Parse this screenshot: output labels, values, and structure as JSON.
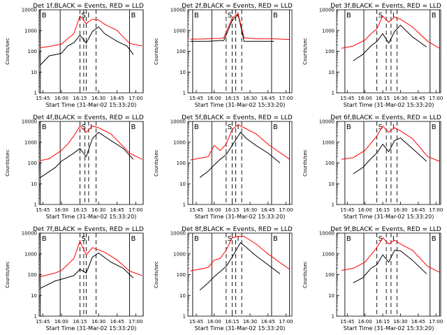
{
  "x_labels": [
    "15:45",
    "16:00",
    "16:15",
    "16:30",
    "16:45",
    "17:00"
  ],
  "y_labels": [
    "1",
    "10",
    "100",
    "1000",
    "10000"
  ],
  "ylabel": "Counts/sec",
  "xlabel": "Start Time (31-Mar-02 15:33:20)",
  "colors": {
    "events": "#000000",
    "lld": "#ff0000"
  },
  "chart_data": [
    {
      "title": "Det 1f,BLACK = Events, RED = LLD",
      "type": "line",
      "yscale": "log",
      "ylim": [
        1,
        10000
      ],
      "x_axis": "time",
      "xlim": [
        "15:42",
        "17:06"
      ],
      "series": [
        {
          "name": "Events",
          "color": "#000000",
          "x": [
            "15:43",
            "15:50",
            "16:00",
            "16:05",
            "16:10",
            "16:15",
            "16:20",
            "16:25",
            "16:30",
            "16:35",
            "16:45",
            "16:53",
            "16:58"
          ],
          "y": [
            22,
            60,
            80,
            180,
            260,
            600,
            250,
            900,
            1500,
            700,
            300,
            180,
            70
          ]
        },
        {
          "name": "LLD",
          "color": "#ff0000",
          "x": [
            "15:43",
            "15:50",
            "16:00",
            "16:05",
            "16:10",
            "16:15",
            "16:20",
            "16:25",
            "16:30",
            "16:35",
            "16:45",
            "16:55",
            "17:05"
          ],
          "y": [
            150,
            170,
            220,
            400,
            700,
            5000,
            2200,
            3500,
            3200,
            2000,
            1000,
            240,
            180
          ]
        }
      ],
      "regions": [
        {
          "label": "B",
          "x": [
            "15:43",
            "15:59"
          ]
        },
        {
          "label": "S",
          "x": [
            "16:15",
            "16:18"
          ]
        },
        {
          "label": "I",
          "x": [
            "16:20",
            "16:28"
          ]
        },
        {
          "label": "B",
          "x": [
            "16:55",
            "17:06"
          ]
        }
      ]
    },
    {
      "title": "Det 2f,BLACK = Events, RED = LLD",
      "type": "line",
      "yscale": "log",
      "ylim": [
        1,
        10000
      ],
      "x_axis": "time",
      "xlim": [
        "15:38",
        "17:05"
      ],
      "series": [
        {
          "name": "Events",
          "color": "#000000",
          "x": [
            "15:40",
            "15:55",
            "16:05",
            "16:08",
            "16:15",
            "16:20",
            "16:25",
            "16:35",
            "16:50"
          ],
          "y": [
            300,
            300,
            330,
            330,
            3000,
            6000,
            300,
            300,
            300
          ]
        },
        {
          "name": "LLD",
          "color": "#ff0000",
          "x": [
            "15:40",
            "15:55",
            "16:05",
            "16:08",
            "16:15",
            "16:20",
            "16:25",
            "16:35",
            "16:50",
            "17:03"
          ],
          "y": [
            380,
            400,
            420,
            450,
            4000,
            6500,
            450,
            400,
            400,
            370
          ]
        }
      ],
      "regions": [
        {
          "label": "B",
          "x": [
            "15:42",
            "15:58"
          ]
        },
        {
          "label": "S",
          "x": [
            "16:10",
            "16:15"
          ]
        },
        {
          "label": "I",
          "x": [
            "16:18",
            "16:23"
          ]
        },
        {
          "label": "B",
          "x": [
            "16:48",
            "17:03"
          ]
        }
      ]
    },
    {
      "title": "Det 3f,BLACK = Events, RED = LLD",
      "type": "line",
      "yscale": "log",
      "ylim": [
        1,
        10000
      ],
      "x_axis": "time",
      "xlim": [
        "15:36",
        "17:04"
      ],
      "series": [
        {
          "name": "Events",
          "color": "#000000",
          "x": [
            "15:50",
            "15:58",
            "16:05",
            "16:10",
            "16:15",
            "16:20",
            "16:25",
            "16:30",
            "16:40",
            "16:52"
          ],
          "y": [
            35,
            70,
            180,
            300,
            700,
            250,
            900,
            1800,
            500,
            160
          ]
        },
        {
          "name": "LLD",
          "color": "#ff0000",
          "x": [
            "15:40",
            "15:50",
            "16:00",
            "16:05",
            "16:10",
            "16:15",
            "16:20",
            "16:25",
            "16:30",
            "16:40",
            "16:53",
            "17:03"
          ],
          "y": [
            140,
            180,
            350,
            700,
            1200,
            5000,
            2500,
            4500,
            3500,
            1500,
            300,
            140
          ]
        }
      ],
      "regions": [
        {
          "label": "B",
          "x": [
            "15:43",
            "15:59"
          ]
        },
        {
          "label": "S",
          "x": [
            "16:10",
            "16:18"
          ]
        },
        {
          "label": "I",
          "x": [
            "16:22",
            "16:27"
          ]
        },
        {
          "label": "B",
          "x": [
            "16:55",
            "17:03"
          ]
        }
      ]
    },
    {
      "title": "Det 4f,BLACK = Events, RED = LLD",
      "type": "line",
      "yscale": "log",
      "ylim": [
        1,
        10000
      ],
      "x_axis": "time",
      "xlim": [
        "15:42",
        "17:06"
      ],
      "series": [
        {
          "name": "Events",
          "color": "#000000",
          "x": [
            "15:43",
            "15:55",
            "16:00",
            "16:10",
            "16:15",
            "16:20",
            "16:25",
            "16:30",
            "16:40",
            "16:50",
            "16:58"
          ],
          "y": [
            20,
            60,
            120,
            300,
            500,
            200,
            1500,
            3000,
            1200,
            500,
            150
          ]
        },
        {
          "name": "LLD",
          "color": "#ff0000",
          "x": [
            "15:43",
            "15:50",
            "16:00",
            "16:05",
            "16:10",
            "16:15",
            "16:20",
            "16:25",
            "16:30",
            "16:40",
            "16:55",
            "17:05"
          ],
          "y": [
            130,
            160,
            400,
            800,
            2000,
            6000,
            3000,
            6000,
            5000,
            2500,
            300,
            150
          ]
        }
      ],
      "regions": [
        {
          "label": "B",
          "x": [
            "15:43",
            "15:59"
          ]
        },
        {
          "label": "S",
          "x": [
            "16:15",
            "16:19"
          ]
        },
        {
          "label": "I",
          "x": [
            "16:22",
            "16:28"
          ]
        },
        {
          "label": "B",
          "x": [
            "16:55",
            "17:06"
          ]
        }
      ]
    },
    {
      "title": "Det 5f,BLACK = Events, RED = LLD",
      "type": "line",
      "yscale": "log",
      "ylim": [
        1,
        10000
      ],
      "x_axis": "time",
      "xlim": [
        "15:38",
        "17:05"
      ],
      "series": [
        {
          "name": "Events",
          "color": "#000000",
          "x": [
            "15:48",
            "15:55",
            "16:00",
            "16:05",
            "16:10",
            "16:15",
            "16:22",
            "16:27",
            "16:35",
            "16:45",
            "16:55"
          ],
          "y": [
            20,
            40,
            80,
            150,
            250,
            700,
            3000,
            1500,
            700,
            300,
            100
          ]
        },
        {
          "name": "LLD",
          "color": "#ff0000",
          "x": [
            "15:40",
            "15:55",
            "16:00",
            "16:05",
            "16:10",
            "16:15",
            "16:20",
            "16:25",
            "16:35",
            "16:45",
            "17:03"
          ],
          "y": [
            140,
            200,
            700,
            400,
            800,
            4000,
            7000,
            5000,
            2500,
            800,
            150
          ]
        }
      ],
      "regions": [
        {
          "label": "B",
          "x": [
            "15:42",
            "15:58"
          ]
        },
        {
          "label": "S",
          "x": [
            "16:10",
            "16:15"
          ]
        },
        {
          "label": "I",
          "x": [
            "16:18",
            "16:23"
          ]
        },
        {
          "label": "B",
          "x": [
            "16:48",
            "17:03"
          ]
        }
      ]
    },
    {
      "title": "Det 6f,BLACK = Events, RED = LLD",
      "type": "line",
      "yscale": "log",
      "ylim": [
        1,
        10000
      ],
      "x_axis": "time",
      "xlim": [
        "15:36",
        "17:04"
      ],
      "series": [
        {
          "name": "Events",
          "color": "#000000",
          "x": [
            "15:50",
            "15:58",
            "16:05",
            "16:10",
            "16:15",
            "16:20",
            "16:25",
            "16:30",
            "16:40",
            "16:52"
          ],
          "y": [
            30,
            60,
            160,
            300,
            800,
            350,
            1200,
            1600,
            500,
            120
          ]
        },
        {
          "name": "LLD",
          "color": "#ff0000",
          "x": [
            "15:40",
            "15:50",
            "16:00",
            "16:05",
            "16:10",
            "16:15",
            "16:20",
            "16:25",
            "16:30",
            "16:40",
            "16:53",
            "17:03"
          ],
          "y": [
            150,
            180,
            400,
            900,
            2000,
            6000,
            3000,
            5000,
            3500,
            1500,
            200,
            120
          ]
        }
      ],
      "regions": [
        {
          "label": "B",
          "x": [
            "15:43",
            "15:59"
          ]
        },
        {
          "label": "S",
          "x": [
            "16:10",
            "16:18"
          ]
        },
        {
          "label": "I",
          "x": [
            "16:22",
            "16:27"
          ]
        },
        {
          "label": "B",
          "x": [
            "16:55",
            "17:03"
          ]
        }
      ]
    },
    {
      "title": "Det 7f,BLACK = Events, RED = LLD",
      "type": "line",
      "yscale": "log",
      "ylim": [
        1,
        10000
      ],
      "x_axis": "time",
      "xlim": [
        "15:42",
        "17:06"
      ],
      "series": [
        {
          "name": "Events",
          "color": "#000000",
          "x": [
            "15:43",
            "15:55",
            "16:00",
            "16:10",
            "16:15",
            "16:20",
            "16:25",
            "16:30",
            "16:40",
            "16:50",
            "16:58"
          ],
          "y": [
            22,
            50,
            60,
            90,
            180,
            120,
            700,
            1100,
            400,
            200,
            70
          ]
        },
        {
          "name": "LLD",
          "color": "#ff0000",
          "x": [
            "15:43",
            "15:55",
            "16:00",
            "16:05",
            "16:10",
            "16:15",
            "16:20",
            "16:25",
            "16:35",
            "16:45",
            "16:55",
            "17:05"
          ],
          "y": [
            80,
            120,
            160,
            300,
            600,
            4000,
            900,
            2000,
            1200,
            500,
            150,
            90
          ]
        }
      ],
      "regions": [
        {
          "label": "B",
          "x": [
            "15:43",
            "15:59"
          ]
        },
        {
          "label": "S",
          "x": [
            "16:15",
            "16:18"
          ]
        },
        {
          "label": "I",
          "x": [
            "16:20",
            "16:28"
          ]
        },
        {
          "label": "B",
          "x": [
            "16:55",
            "17:06"
          ]
        }
      ]
    },
    {
      "title": "Det 8f,BLACK = Events, RED = LLD",
      "type": "line",
      "yscale": "log",
      "ylim": [
        1,
        10000
      ],
      "x_axis": "time",
      "xlim": [
        "15:38",
        "17:05"
      ],
      "series": [
        {
          "name": "Events",
          "color": "#000000",
          "x": [
            "15:48",
            "15:55",
            "16:00",
            "16:05",
            "16:10",
            "16:15",
            "16:22",
            "16:27",
            "16:35",
            "16:45",
            "16:55"
          ],
          "y": [
            18,
            40,
            80,
            140,
            250,
            700,
            3500,
            2000,
            800,
            300,
            110
          ]
        },
        {
          "name": "LLD",
          "color": "#ff0000",
          "x": [
            "15:40",
            "15:55",
            "16:00",
            "16:05",
            "16:10",
            "16:15",
            "16:20",
            "16:25",
            "16:35",
            "16:45",
            "17:03"
          ],
          "y": [
            150,
            220,
            500,
            600,
            1500,
            6000,
            7000,
            7000,
            3000,
            1000,
            180
          ]
        }
      ],
      "regions": [
        {
          "label": "B",
          "x": [
            "15:42",
            "15:58"
          ]
        },
        {
          "label": "S",
          "x": [
            "16:10",
            "16:15"
          ]
        },
        {
          "label": "I",
          "x": [
            "16:18",
            "16:23"
          ]
        },
        {
          "label": "B",
          "x": [
            "16:48",
            "17:03"
          ]
        }
      ]
    },
    {
      "title": "Det 9f,BLACK = Events, RED = LLD",
      "type": "line",
      "yscale": "log",
      "ylim": [
        1,
        10000
      ],
      "x_axis": "time",
      "xlim": [
        "15:36",
        "17:04"
      ],
      "series": [
        {
          "name": "Events",
          "color": "#000000",
          "x": [
            "15:50",
            "15:58",
            "16:05",
            "16:10",
            "16:15",
            "16:20",
            "16:25",
            "16:30",
            "16:40",
            "16:52"
          ],
          "y": [
            40,
            70,
            200,
            300,
            900,
            400,
            1500,
            1400,
            500,
            110
          ]
        },
        {
          "name": "LLD",
          "color": "#ff0000",
          "x": [
            "15:40",
            "15:50",
            "16:00",
            "16:05",
            "16:10",
            "16:15",
            "16:20",
            "16:25",
            "16:30",
            "16:40",
            "16:53",
            "17:03"
          ],
          "y": [
            160,
            200,
            400,
            900,
            2000,
            6000,
            3000,
            4500,
            3000,
            1500,
            250,
            130
          ]
        }
      ],
      "regions": [
        {
          "label": "B",
          "x": [
            "15:43",
            "15:59"
          ]
        },
        {
          "label": "S",
          "x": [
            "16:10",
            "16:18"
          ]
        },
        {
          "label": "I",
          "x": [
            "16:22",
            "16:27"
          ]
        },
        {
          "label": "B",
          "x": [
            "16:55",
            "17:03"
          ]
        }
      ]
    }
  ]
}
